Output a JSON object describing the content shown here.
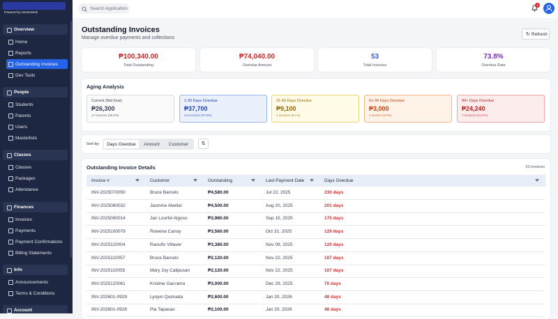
{
  "sidebar": {
    "brand": "Powered by SenseDesk",
    "sections": [
      {
        "title": "Overview",
        "items": [
          {
            "label": "Home"
          },
          {
            "label": "Reports"
          },
          {
            "label": "Outstanding Invoices",
            "active": true
          },
          {
            "label": "Dev Tools"
          }
        ]
      },
      {
        "title": "People",
        "items": [
          {
            "label": "Students"
          },
          {
            "label": "Parents"
          },
          {
            "label": "Users"
          },
          {
            "label": "Masterlists"
          }
        ]
      },
      {
        "title": "Classes",
        "items": [
          {
            "label": "Classes"
          },
          {
            "label": "Packages"
          },
          {
            "label": "Attendance"
          }
        ]
      },
      {
        "title": "Finances",
        "items": [
          {
            "label": "Invoices"
          },
          {
            "label": "Payments"
          },
          {
            "label": "Payment Confirmations"
          },
          {
            "label": "Billing Statements"
          }
        ]
      },
      {
        "title": "Info",
        "items": [
          {
            "label": "Announcements"
          },
          {
            "label": "Terms & Conditions"
          }
        ]
      },
      {
        "title": "Account"
      }
    ]
  },
  "topbar": {
    "search_placeholder": "Search Application",
    "notification_count": 4
  },
  "header": {
    "title": "Outstanding Invoices",
    "subtitle": "Manage overdue payments and collections",
    "refresh": "Refresh"
  },
  "stats": [
    {
      "value": "₱100,340.00",
      "label": "Total Outstanding",
      "color": "#c62828"
    },
    {
      "value": "₱74,040.00",
      "label": "Overdue Amount",
      "color": "#c62828"
    },
    {
      "value": "53",
      "label": "Total Invoices",
      "color": "#3b5bdb"
    },
    {
      "value": "73.8%",
      "label": "Overdue Rate",
      "color": "#7b2cbf"
    }
  ],
  "aging": {
    "title": "Aging Analysis",
    "buckets": [
      {
        "label": "Current (Not Due)",
        "amount": "₱26,300",
        "count": "17 invoices (26.2%)",
        "bg": "#fafafa",
        "border": "#d9dbe0",
        "color": "#374151"
      },
      {
        "label": "1-30 Days Overdue",
        "amount": "₱37,700",
        "count": "24 invoices (37.6%)",
        "bg": "#eaf1fd",
        "border": "#9bb6e8",
        "color": "#1e40af"
      },
      {
        "label": "31-60 Days Overdue",
        "amount": "₱9,100",
        "count": "4 invoices (9.1%)",
        "bg": "#fffbe6",
        "border": "#f0d67a",
        "color": "#92650a"
      },
      {
        "label": "61-90 Days Overdue",
        "amount": "₱3,000",
        "count": "1 invoice (3.0%)",
        "bg": "#fff3e8",
        "border": "#f0b58a",
        "color": "#c2410c"
      },
      {
        "label": "90+ Days Overdue",
        "amount": "₱24,240",
        "count": "7 invoices (24.2%)",
        "bg": "#fdecec",
        "border": "#f0a5a5",
        "color": "#b91c1c"
      }
    ]
  },
  "sort": {
    "label": "Sort by:",
    "options": [
      "Days Overdue",
      "Amount",
      "Customer"
    ],
    "active": 0
  },
  "table": {
    "title": "Outstanding Invoice Details",
    "count": "53 invoices",
    "columns": [
      "Invoice #",
      "Customer",
      "Outstanding",
      "Last Payment Date",
      "Days Overdue"
    ],
    "rows": [
      [
        "INV-2025070050",
        "Bruce Barcelo",
        "₱4,580.00",
        "Jul 22, 2025",
        "230 days"
      ],
      [
        "INV-2025080032",
        "Jasmine Abellar",
        "₱4,500.00",
        "Aug 20, 2025",
        "201 days"
      ],
      [
        "INV-2025090014",
        "Jan Lourfel Algoso",
        "₱3,980.00",
        "Sep 15, 2025",
        "175 days"
      ],
      [
        "INV-2025100079",
        "Rowena Canoy",
        "₱3,560.00",
        "Oct 31, 2025",
        "129 days"
      ],
      [
        "INV-2025110004",
        "Ranulfo Villaver",
        "₱3,380.00",
        "Nov 09, 2025",
        "120 days"
      ],
      [
        "INV-2025110057",
        "Bruce Barcelo",
        "₱2,120.00",
        "Nov 22, 2025",
        "107 days"
      ],
      [
        "INV-2025110055",
        "Mary Joy Calipusan",
        "₱2,120.00",
        "Nov 22, 2025",
        "107 days"
      ],
      [
        "INV-2025120061",
        "Kristine Gacrama",
        "₱3,000.00",
        "Dec 29, 2025",
        "70 days"
      ],
      [
        "INV-202601-0929",
        "Lynjun Quimada",
        "₱2,600.00",
        "Jan 20, 2026",
        "48 days"
      ],
      [
        "INV-202601-0928",
        "Pia Tapasao",
        "₱2,100.00",
        "Jan 20, 2026",
        "48 days"
      ]
    ]
  }
}
